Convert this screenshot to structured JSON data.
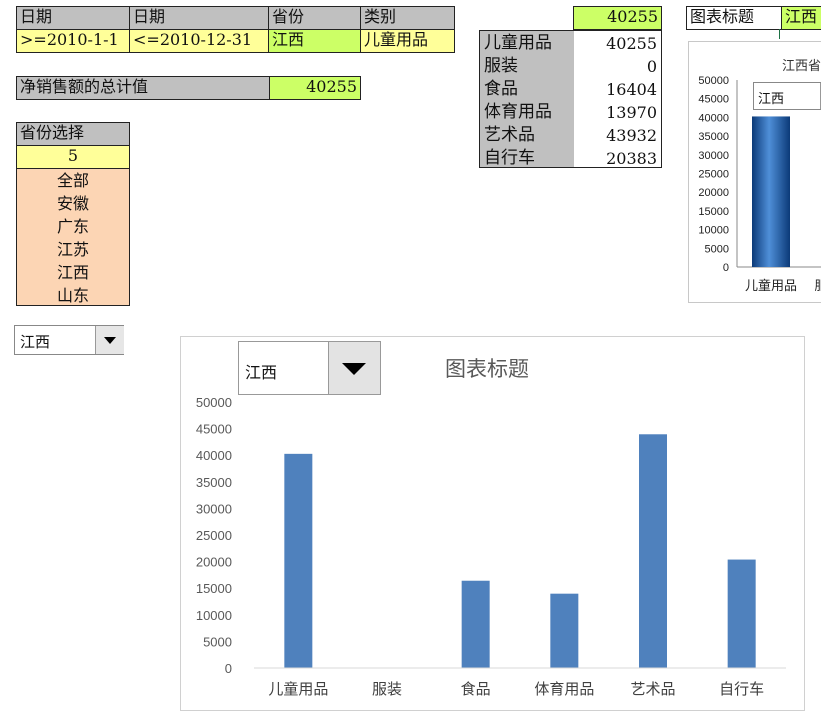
{
  "criteria": {
    "headers": [
      "日期",
      "日期",
      "省份",
      "类别"
    ],
    "values": [
      ">=2010-1-1",
      "<=2010-12-31",
      "江西",
      "儿童用品"
    ]
  },
  "total": {
    "label": "净销售额的总计值",
    "value": "40255"
  },
  "province_select": {
    "header": "省份选择",
    "index": "5",
    "options": [
      "全部",
      "安徽",
      "广东",
      "江苏",
      "江西",
      "山东"
    ]
  },
  "dropdown_small": {
    "value": "江西"
  },
  "summary_table": {
    "top_value": "40255",
    "rows": [
      {
        "label": "儿童用品",
        "value": "40255"
      },
      {
        "label": "服装",
        "value": "0"
      },
      {
        "label": "食品",
        "value": "16404"
      },
      {
        "label": "体育用品",
        "value": "13970"
      },
      {
        "label": "艺术品",
        "value": "43932"
      },
      {
        "label": "自行车",
        "value": "20383"
      }
    ]
  },
  "chart_title_cell": {
    "label": "图表标题",
    "value": "江西"
  },
  "colors": {
    "bar": "#4f81bd",
    "lime": "#ccff66",
    "yellow": "#ffff99",
    "peach": "#fcd5b4",
    "gray": "#c0c0c0"
  },
  "chart_data": [
    {
      "type": "bar",
      "title": "图表标题",
      "dropdown_value": "江西",
      "categories": [
        "儿童用品",
        "服装",
        "食品",
        "体育用品",
        "艺术品",
        "自行车"
      ],
      "values": [
        40255,
        0,
        16404,
        13970,
        43932,
        20383
      ],
      "ylim": [
        0,
        50000
      ],
      "yticks": [
        "0",
        "5000",
        "10000",
        "15000",
        "20000",
        "25000",
        "30000",
        "35000",
        "40000",
        "45000",
        "50000"
      ],
      "xlabel": "",
      "ylabel": "",
      "grid": false,
      "legend": "none"
    },
    {
      "type": "bar",
      "title": "江西省",
      "dropdown_value": "江西",
      "categories": [
        "儿童用品",
        "服"
      ],
      "values": [
        40255,
        0
      ],
      "ylim": [
        0,
        50000
      ],
      "yticks": [
        "0",
        "5000",
        "10000",
        "15000",
        "20000",
        "25000",
        "30000",
        "35000",
        "40000",
        "45000",
        "50000"
      ],
      "grid": false,
      "legend": "none"
    }
  ]
}
